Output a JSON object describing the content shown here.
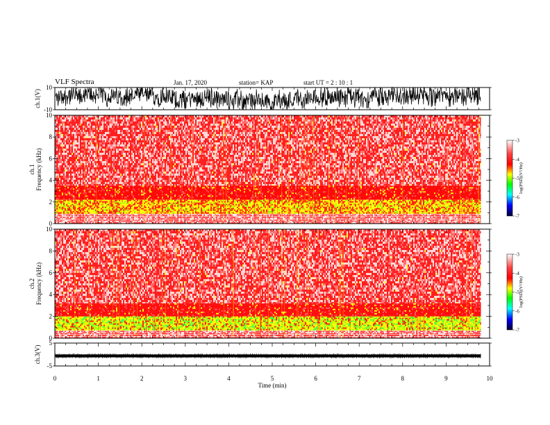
{
  "header": {
    "title": "VLF Spectra",
    "date": "Jan. 17, 2020",
    "station": "station= KAP",
    "start": "start UT =  2 : 10 : 1"
  },
  "chart_data": [
    {
      "type": "line",
      "panel": "ch1-waveform",
      "ylabel": "ch.1(V)",
      "ylim": [
        -10,
        10
      ],
      "yticks": [
        "10",
        "-10"
      ],
      "xlim": [
        0,
        10
      ],
      "trace_color": "#000000",
      "description_values": {
        "envelope_min": -10,
        "envelope_max": 10,
        "data_end_min": 9.8
      }
    },
    {
      "type": "heatmap",
      "panel": "ch1-spectrogram",
      "ylabel": "ch.1\nFrequency (kHz)",
      "ylabel_lines": [
        "ch.1",
        "Frequency (kHz)"
      ],
      "ylim": [
        0,
        10
      ],
      "yticks": [
        "0",
        "2",
        "4",
        "6",
        "8",
        "10"
      ],
      "xlim": [
        0,
        10
      ],
      "data_end_min": 9.8,
      "colorbar": {
        "label": "log(PSD)(V²/Hz)",
        "range": [
          -7,
          -3
        ],
        "ticks": [
          "-3",
          "-4",
          "-5",
          "-6",
          "-7"
        ],
        "colormap": [
          "#ffffff",
          "#ff0000",
          "#ffff00",
          "#00ff00",
          "#00ffff",
          "#0000ff",
          "#000000"
        ]
      },
      "bands_kHz": [
        {
          "from": 0,
          "to": 0.9,
          "level": "low-striped"
        },
        {
          "from": 0.9,
          "to": 2.2,
          "level": "yellow"
        },
        {
          "from": 2.2,
          "to": 3.5,
          "level": "red"
        },
        {
          "from": 3.5,
          "to": 10,
          "level": "speckled-red"
        }
      ]
    },
    {
      "type": "heatmap",
      "panel": "ch2-spectrogram",
      "ylabel": "ch.2\nFrequency (kHz)",
      "ylabel_lines": [
        "ch.2",
        "Frequency (kHz)"
      ],
      "ylim": [
        0,
        10
      ],
      "yticks": [
        "0",
        "2",
        "4",
        "6",
        "8",
        "10"
      ],
      "xlim": [
        0,
        10
      ],
      "data_end_min": 9.8,
      "colorbar": {
        "label": "log(PSD)(V²/Hz)",
        "range": [
          -7,
          -3
        ],
        "ticks": [
          "-3",
          "-4",
          "-5",
          "-6",
          "-7"
        ],
        "colormap": [
          "#ffffff",
          "#ff0000",
          "#ffff00",
          "#00ff00",
          "#00ffff",
          "#0000ff",
          "#000000"
        ]
      },
      "bands_kHz": [
        {
          "from": 0,
          "to": 0.7,
          "level": "low-striped"
        },
        {
          "from": 0.7,
          "to": 2.0,
          "level": "yellow-green"
        },
        {
          "from": 2.0,
          "to": 3.2,
          "level": "red"
        },
        {
          "from": 3.2,
          "to": 10,
          "level": "speckled-red"
        }
      ]
    },
    {
      "type": "line",
      "panel": "ch3-waveform",
      "ylabel": "ch.3(V)",
      "ylim": [
        -5,
        5
      ],
      "yticks": [
        "5",
        "-5"
      ],
      "xlim": [
        0,
        10
      ],
      "xlabel": "Time (min)",
      "xticks": [
        "0",
        "1",
        "2",
        "3",
        "4",
        "5",
        "6",
        "7",
        "8",
        "9",
        "10"
      ],
      "trace_color": "#000000",
      "description_values": {
        "envelope_min": -1.2,
        "envelope_max": 0.0,
        "data_end_min": 9.8
      }
    }
  ]
}
